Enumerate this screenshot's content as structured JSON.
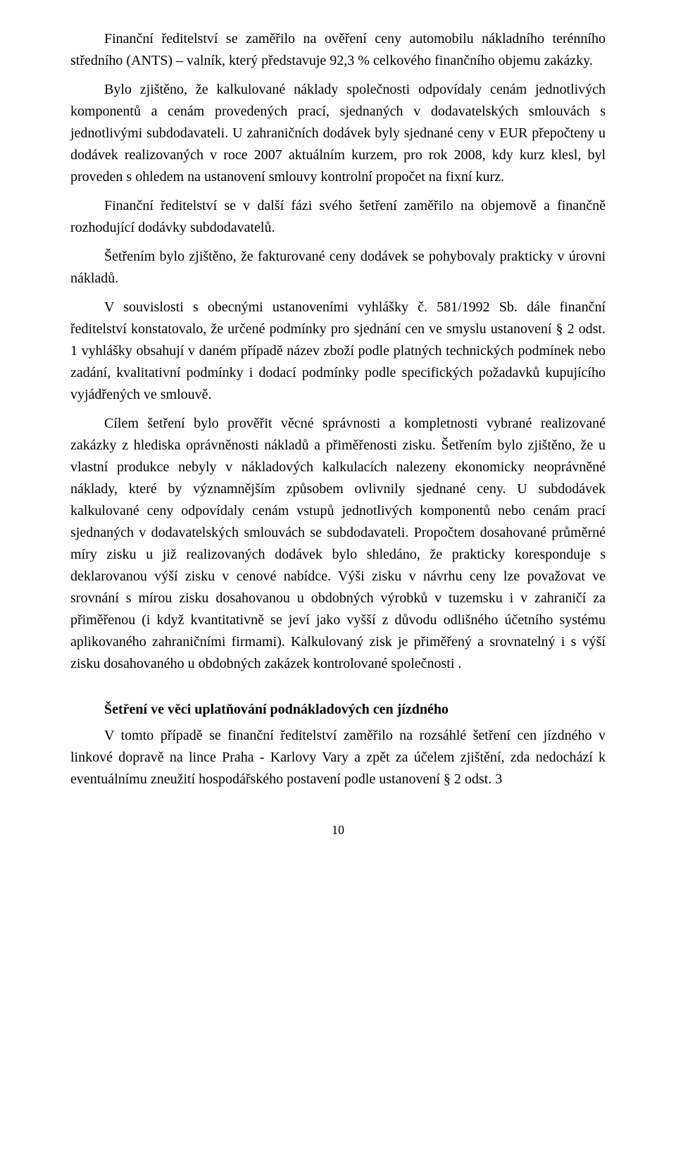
{
  "document": {
    "text_color": "#000000",
    "background_color": "#ffffff",
    "font_family": "Times New Roman",
    "body_font_size_pt": 15,
    "paragraphs": [
      "Finanční ředitelství se zaměřilo na ověření ceny automobilu nákladního terénního středního (ANTS) – valník, který představuje 92,3 % celkového finančního objemu zakázky.",
      "Bylo zjištěno, že kalkulované náklady společnosti odpovídaly cenám jednotlivých komponentů a cenám provedených prací, sjednaných v dodavatelských smlouvách s jednotlivými subdodavateli. U zahraničních dodávek byly sjednané ceny v EUR přepočteny u dodávek realizovaných v roce 2007 aktuálním kurzem, pro rok 2008, kdy kurz klesl, byl proveden s ohledem na ustanovení smlouvy kontrolní propočet na fixní kurz.",
      "Finanční ředitelství se v další fázi svého šetření zaměřilo na objemově a finančně rozhodující dodávky subdodavatelů.",
      "Šetřením bylo zjištěno, že fakturované ceny dodávek se pohybovaly prakticky v úrovni nákladů.",
      "V souvislosti s obecnými ustanoveními vyhlášky č. 581/1992 Sb. dále finanční ředitelství konstatovalo, že určené podmínky pro sjednání cen ve smyslu ustanovení § 2 odst. 1 vyhlášky obsahují v daném případě název zboží podle platných technických podmínek nebo zadání, kvalitativní podmínky i dodací podmínky podle specifických požadavků kupujícího vyjádřených ve smlouvě.",
      "Cílem šetření bylo prověřit věcné správnosti a kompletnosti vybrané realizované zakázky z hlediska oprávněnosti nákladů a přiměřenosti zisku. Šetřením bylo zjištěno, že u vlastní produkce nebyly v nákladových kalkulacích nalezeny ekonomicky neoprávněné náklady, které by významnějším způsobem ovlivnily sjednané ceny. U subdodávek kalkulované ceny odpovídaly cenám vstupů jednotlivých komponentů nebo cenám prací sjednaných v dodavatelských smlouvách se subdodavateli. Propočtem dosahované průměrné míry zisku u již realizovaných dodávek bylo shledáno, že prakticky koresponduje s deklarovanou výší zisku v cenové nabídce. Výši zisku v návrhu ceny lze považovat ve srovnání s mírou zisku dosahovanou u obdobných výrobků v tuzemsku i v zahraničí za přiměřenou (i když kvantitativně se jeví jako vyšší z důvodu odlišného účetního systému aplikovaného zahraničními firmami). Kalkulovaný zisk je přiměřený a srovnatelný i s výší zisku dosahovaného u obdobných zakázek kontrolované společnosti .",
      "V tomto případě se finanční ředitelství zaměřilo na rozsáhlé šetření cen jízdného v linkové dopravě na lince Praha - Karlovy Vary a zpět za účelem zjištění, zda nedochází k eventuálnímu zneužití hospodářského postavení podle ustanovení § 2 odst. 3"
    ],
    "section_heading": "Šetření ve věci uplatňování podnákladových cen jízdného",
    "page_number": "10"
  }
}
